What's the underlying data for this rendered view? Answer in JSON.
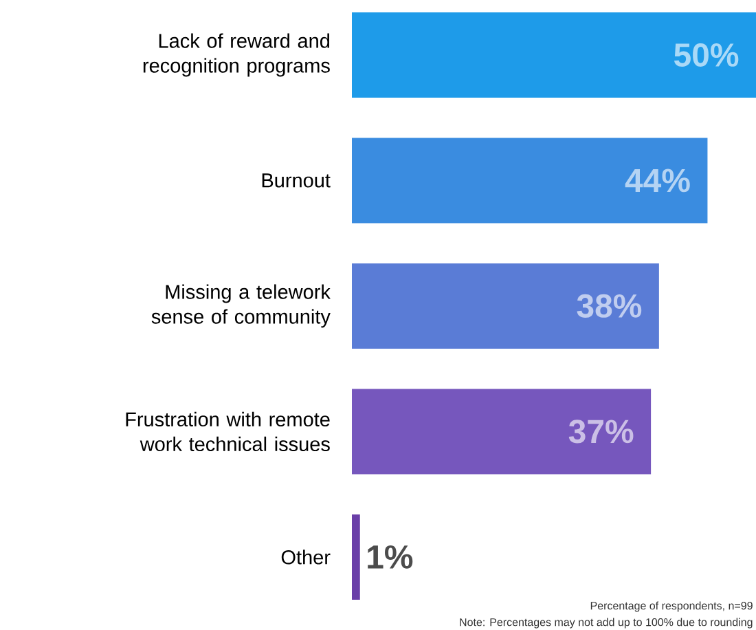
{
  "chart_data": {
    "type": "bar",
    "orientation": "horizontal",
    "categories": [
      "Lack of reward and recognition programs",
      "Burnout",
      "Missing a telework sense of community",
      "Frustration with remote work technical issues",
      "Other"
    ],
    "values": [
      50,
      44,
      38,
      37,
      1
    ],
    "value_labels": [
      "50%",
      "44%",
      "38%",
      "37%",
      "1%"
    ],
    "colors": [
      "#1e9be9",
      "#3a8ce0",
      "#5a7cd6",
      "#7657bd",
      "#6a3fa8"
    ],
    "annotations": [
      "Percentage of respondents, n=99",
      "Note: Percentages may not add up to 100% due to rounding"
    ]
  }
}
